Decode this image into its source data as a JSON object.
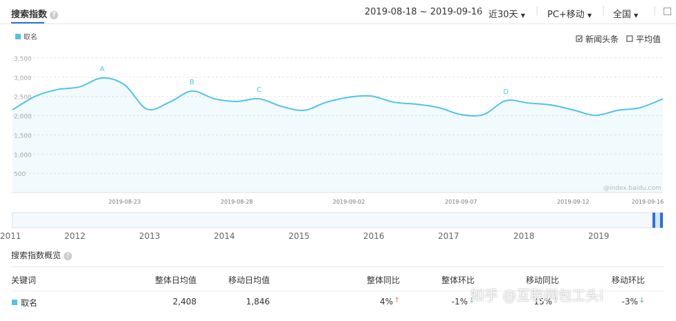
{
  "header": {
    "title": "搜索指数",
    "date_range": "2019-08-18 ~ 2019-09-16",
    "period": "近30天",
    "device": "PC+移动",
    "region": "全国"
  },
  "chart_options": [
    "新闻头条",
    "平均值"
  ],
  "chart_data": {
    "type": "line",
    "color": "#4fc3e8",
    "categories": [
      null,
      null,
      null,
      null,
      null,
      "2019-08-23",
      null,
      null,
      null,
      null,
      "2019-08-28",
      null,
      null,
      null,
      null,
      "2019-09-02",
      null,
      null,
      null,
      null,
      "2019-09-07",
      null,
      null,
      null,
      null,
      "2019-09-12",
      null,
      null,
      null,
      "2019-09-16"
    ],
    "series": [
      {
        "name": "取名",
        "color": "#4fc3e8",
        "values": [
          2150,
          2500,
          2680,
          2750,
          2980,
          2800,
          2170,
          2350,
          2640,
          2440,
          2370,
          2440,
          2240,
          2140,
          2350,
          2480,
          2510,
          2350,
          2300,
          2210,
          2030,
          2030,
          2390,
          2330,
          2280,
          2150,
          2010,
          2140,
          2210,
          2440
        ]
      }
    ],
    "annotations": [
      "A",
      "B",
      "C",
      "D"
    ],
    "ylim": [
      0,
      3500
    ],
    "yticks": [
      {
        "value": 500,
        "label": "500"
      },
      {
        "value": 1000,
        "label": "1,000"
      },
      {
        "value": 1500,
        "label": "1,500"
      },
      {
        "value": 2000,
        "label": "2,000"
      },
      {
        "value": 2500,
        "label": "2,500"
      },
      {
        "value": 3000,
        "label": "3,000"
      },
      {
        "value": 3500,
        "label": "3,500"
      }
    ],
    "grid": true,
    "watermark": "@index.baidu.com"
  },
  "range_years": [
    "2011",
    "2012",
    "2013",
    "2014",
    "2015",
    "2016",
    "2017",
    "2018",
    "2019"
  ],
  "overview": {
    "title": "搜索指数概览",
    "headers": [
      "关键词",
      "整体日均值",
      "移动日均值",
      "整体同比",
      "整体环比",
      "移动同比",
      "移动环比"
    ],
    "row": [
      "取名",
      "2,408",
      "1,846",
      "4%",
      "-1%",
      "15%",
      "-3%"
    ]
  },
  "overlay_watermark": "知乎 @互联网包工头i"
}
